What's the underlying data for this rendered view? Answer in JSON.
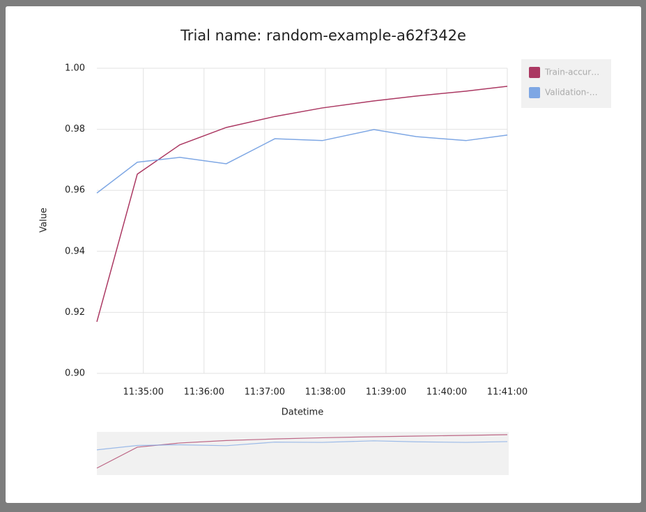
{
  "chart_data": {
    "type": "line",
    "title": "Trial name: random-example-a62f342e",
    "x_label": "Datetime",
    "y_label": "Value",
    "x": [
      "11:34:14",
      "11:34:54",
      "11:35:36",
      "11:36:22",
      "11:37:10",
      "11:37:57",
      "11:38:48",
      "11:39:30",
      "11:40:19",
      "11:41:00"
    ],
    "series": [
      {
        "name": "Train-accur…",
        "color": "#ab3862",
        "values": [
          0.9169,
          0.9653,
          0.9749,
          0.9806,
          0.9842,
          0.987,
          0.9893,
          0.9909,
          0.9925,
          0.9941
        ]
      },
      {
        "name": "Validation-…",
        "color": "#7ea7e4",
        "values": [
          0.9591,
          0.9692,
          0.9708,
          0.9687,
          0.9769,
          0.9763,
          0.9799,
          0.9776,
          0.9763,
          0.9781
        ]
      }
    ],
    "xlim": [
      "11:34:14",
      "11:41:00"
    ],
    "xticks": [
      "11:35:00",
      "11:36:00",
      "11:37:00",
      "11:38:00",
      "11:39:00",
      "11:40:00",
      "11:41:00"
    ],
    "ylim": [
      0.9,
      1.0
    ],
    "yticks": [
      {
        "value": 0.9,
        "label": "0.90"
      },
      {
        "value": 0.92,
        "label": "0.92"
      },
      {
        "value": 0.94,
        "label": "0.94"
      },
      {
        "value": 0.96,
        "label": "0.96"
      },
      {
        "value": 0.98,
        "label": "0.98"
      },
      {
        "value": 1.0,
        "label": "1.00"
      }
    ],
    "grid": true,
    "legend": "top-right"
  }
}
